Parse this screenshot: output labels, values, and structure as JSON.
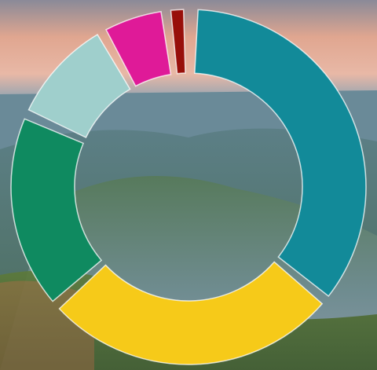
{
  "chart_data": {
    "type": "pie",
    "donut": true,
    "values": [
      35,
      27,
      18,
      10,
      6,
      2
    ],
    "colors": [
      "#128a99",
      "#f6ca19",
      "#0f8a60",
      "#9fcfcc",
      "#df1a98",
      "#980f0a"
    ]
  }
}
